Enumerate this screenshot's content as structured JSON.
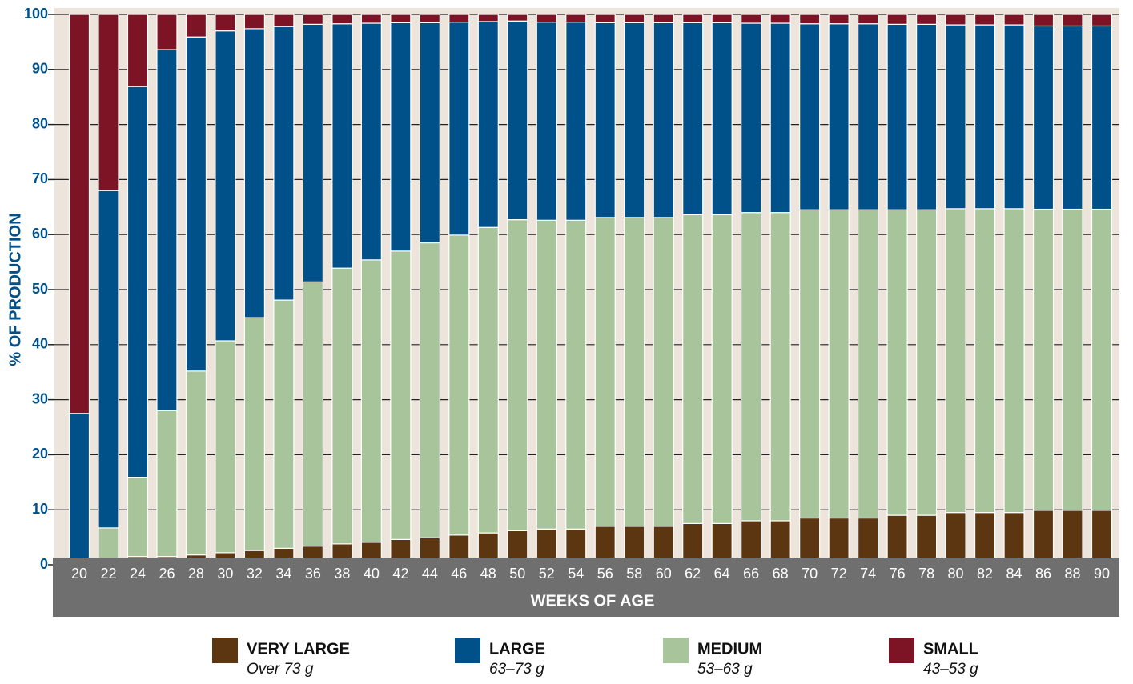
{
  "chart_data": {
    "type": "stacked_bar",
    "x_label": "WEEKS OF AGE",
    "y_label": "% OF PRODUCTION",
    "categories": [
      "20",
      "22",
      "24",
      "26",
      "28",
      "30",
      "32",
      "34",
      "36",
      "38",
      "40",
      "42",
      "44",
      "46",
      "48",
      "50",
      "52",
      "54",
      "56",
      "58",
      "60",
      "62",
      "64",
      "66",
      "68",
      "70",
      "72",
      "74",
      "76",
      "78",
      "80",
      "82",
      "84",
      "86",
      "88",
      "90"
    ],
    "series": [
      {
        "name": "VERY LARGE",
        "range": "Over 73 g",
        "color": "#5c3511",
        "values": [
          0,
          0,
          1.5,
          1.5,
          1.8,
          2.2,
          2.6,
          3.0,
          3.4,
          3.8,
          4.1,
          4.6,
          4.9,
          5.4,
          5.8,
          6.2,
          6.5,
          6.5,
          7.0,
          7.0,
          7.0,
          7.5,
          7.5,
          8.0,
          8.0,
          8.5,
          8.5,
          8.5,
          9.0,
          9.0,
          9.5,
          9.5,
          9.5,
          9.9,
          9.9,
          9.9
        ]
      },
      {
        "name": "MEDIUM",
        "range": "53–63 g",
        "color": "#a7c49b",
        "values": [
          0,
          6.7,
          14.4,
          26.5,
          33.4,
          38.5,
          42.3,
          45.1,
          48.0,
          50.1,
          51.3,
          52.4,
          53.6,
          54.5,
          55.5,
          56.5,
          56.1,
          56.1,
          56.1,
          56.1,
          56.1,
          56.1,
          56.1,
          56.0,
          56.0,
          56.0,
          56.0,
          56.0,
          55.5,
          55.5,
          55.2,
          55.2,
          55.2,
          54.7,
          54.7,
          54.7
        ]
      },
      {
        "name": "LARGE",
        "range": "63–73 g",
        "color": "#00508a",
        "values": [
          27.5,
          61.3,
          71.0,
          65.6,
          60.7,
          56.3,
          52.5,
          49.7,
          46.8,
          44.4,
          43.0,
          41.5,
          40.0,
          38.7,
          37.4,
          36.1,
          36.0,
          36.0,
          35.4,
          35.4,
          35.4,
          34.9,
          34.9,
          34.4,
          34.4,
          33.8,
          33.8,
          33.8,
          33.7,
          33.7,
          33.4,
          33.4,
          33.4,
          33.3,
          33.3,
          33.3
        ]
      },
      {
        "name": "SMALL",
        "range": "43–53 g",
        "color": "#7d1426",
        "values": [
          72.5,
          32.0,
          13.1,
          6.4,
          4.1,
          3.0,
          2.6,
          2.2,
          1.8,
          1.7,
          1.6,
          1.5,
          1.5,
          1.4,
          1.3,
          1.2,
          1.4,
          1.4,
          1.5,
          1.5,
          1.5,
          1.5,
          1.5,
          1.6,
          1.6,
          1.7,
          1.7,
          1.7,
          1.8,
          1.8,
          1.9,
          1.9,
          1.9,
          2.1,
          2.1,
          2.1
        ]
      }
    ],
    "legend_order": [
      0,
      2,
      1,
      3
    ],
    "ylim": [
      0,
      100
    ],
    "yticks": [
      0,
      10,
      20,
      30,
      40,
      50,
      60,
      70,
      80,
      90,
      100
    ],
    "grid": true
  }
}
